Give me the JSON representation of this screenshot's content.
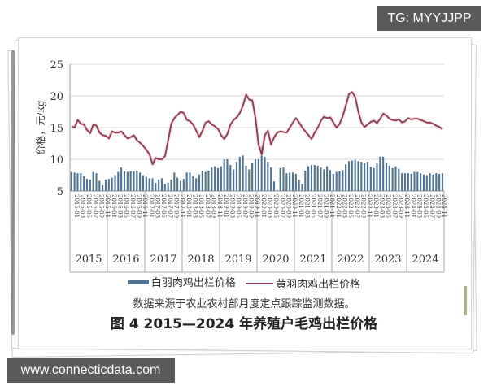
{
  "watermarks": {
    "top": "TG: MYYJJPP",
    "bottom": "www.connecticdata.com"
  },
  "caption": {
    "source_note": "数据来源于农业农村部月度定点跟踪监测数据。",
    "figure_title": "图 4 2015—2024 年养殖户毛鸡出栏价格"
  },
  "legend": {
    "white_feather": "白羽肉鸡出栏价格",
    "yellow_feather": "黄羽肉鸡出栏价格"
  },
  "colors": {
    "bar": "#4f7390",
    "line": "#8b3a4e",
    "grid": "#d9d9d9",
    "axis_text": "#333333"
  },
  "chart_data": {
    "type": "bar+line",
    "title": "图 4 2015—2024 年养殖户毛鸡出栏价格",
    "xlabel": "",
    "ylabel": "价格，元/kg",
    "ylim": [
      5,
      25
    ],
    "yticks": [
      5,
      10,
      15,
      20,
      25
    ],
    "grid": true,
    "legend_position": "bottom",
    "year_groups": [
      "2015",
      "2016",
      "2017",
      "2018",
      "2019",
      "2020",
      "2021",
      "2022",
      "2023",
      "2024"
    ],
    "tick_months": [
      "01",
      "03",
      "05",
      "07",
      "09",
      "11"
    ],
    "x_tick_format": "YYYY-MM (every 2 months, rotated)",
    "series": [
      {
        "name": "白羽肉鸡出栏价格",
        "type": "bar",
        "values": [
          8.0,
          7.9,
          7.8,
          7.8,
          7.3,
          6.9,
          6.8,
          8.0,
          7.8,
          6.6,
          5.9,
          6.8,
          6.9,
          7.1,
          7.5,
          8.0,
          8.7,
          8.1,
          8.0,
          8.1,
          8.1,
          8.2,
          7.9,
          7.5,
          7.2,
          7.0,
          7.0,
          6.3,
          6.8,
          7.0,
          6.1,
          6.3,
          6.8,
          7.9,
          7.1,
          6.6,
          6.9,
          7.9,
          7.9,
          7.3,
          7.0,
          7.6,
          8.2,
          8.0,
          8.2,
          8.7,
          8.9,
          8.6,
          8.9,
          10.0,
          10.0,
          9.1,
          8.4,
          9.6,
          10.4,
          10.6,
          9.0,
          8.4,
          9.5,
          10.0,
          10.0,
          12.0,
          10.4,
          9.6,
          8.7,
          6.5,
          5.1,
          8.6,
          8.7,
          7.8,
          7.9,
          7.9,
          7.7,
          6.8,
          6.1,
          8.2,
          8.9,
          9.1,
          9.1,
          9.0,
          8.7,
          8.4,
          8.9,
          8.3,
          7.7,
          8.0,
          8.1,
          8.3,
          9.2,
          9.7,
          9.8,
          9.9,
          9.7,
          9.6,
          9.4,
          9.6,
          8.8,
          8.6,
          9.4,
          10.4,
          10.4,
          9.5,
          9.0,
          8.6,
          8.9,
          8.5,
          7.8,
          7.8,
          7.8,
          7.7,
          8.0,
          8.0,
          7.8,
          7.6,
          7.5,
          7.8,
          7.6,
          7.8,
          7.7,
          7.8
        ]
      },
      {
        "name": "黄羽肉鸡出栏价格",
        "type": "line",
        "values": [
          15.2,
          15.0,
          16.2,
          15.6,
          15.5,
          14.6,
          14.1,
          15.5,
          15.3,
          14.2,
          13.8,
          13.7,
          13.3,
          14.4,
          14.2,
          14.2,
          14.4,
          13.8,
          13.3,
          13.5,
          13.8,
          13.0,
          12.6,
          12.1,
          11.5,
          10.8,
          9.2,
          10.2,
          10.0,
          10.0,
          10.5,
          13.0,
          15.6,
          16.5,
          17.0,
          17.5,
          17.3,
          16.2,
          16.0,
          15.5,
          14.5,
          13.5,
          14.5,
          15.8,
          16.0,
          15.5,
          15.2,
          14.8,
          13.8,
          13.2,
          14.0,
          15.5,
          16.2,
          16.6,
          17.3,
          18.5,
          20.2,
          19.4,
          19.3,
          16.5,
          12.3,
          10.8,
          13.8,
          14.5,
          12.3,
          13.5,
          14.2,
          14.4,
          14.3,
          14.2,
          15.0,
          15.8,
          16.5,
          15.8,
          15.0,
          14.4,
          13.8,
          13.2,
          14.2,
          15.0,
          16.1,
          16.7,
          16.5,
          16.6,
          15.8,
          15.0,
          15.6,
          16.8,
          18.5,
          20.3,
          20.6,
          19.8,
          17.5,
          15.8,
          15.1,
          15.5,
          15.9,
          16.1,
          15.7,
          16.4,
          17.2,
          16.9,
          16.4,
          16.2,
          16.1,
          16.3,
          15.8,
          16.0,
          16.5,
          16.3,
          16.4,
          16.4,
          16.2,
          16.0,
          15.8,
          15.8,
          15.6,
          15.3,
          15.1,
          14.7
        ]
      }
    ]
  }
}
